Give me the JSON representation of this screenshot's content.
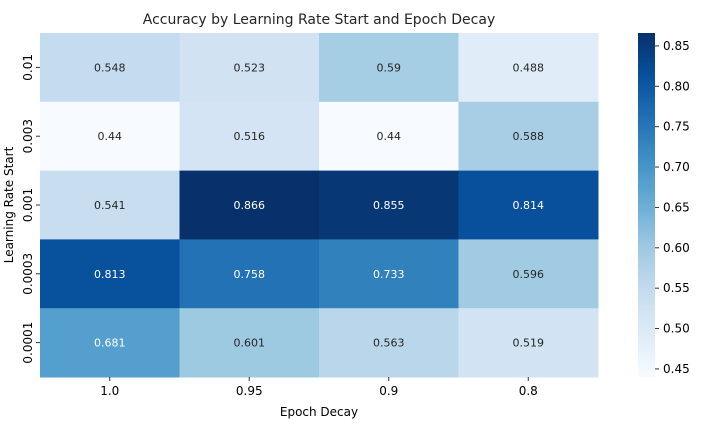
{
  "chart_data": {
    "type": "heatmap",
    "title": "Accuracy by Learning Rate Start and Epoch Decay",
    "xlabel": "Epoch Decay",
    "ylabel": "Learning Rate Start",
    "x_categories": [
      "1.0",
      "0.95",
      "0.9",
      "0.8"
    ],
    "y_categories": [
      "0.01",
      "0.003",
      "0.001",
      "0.0003",
      "0.0001"
    ],
    "values": [
      [
        0.548,
        0.523,
        0.59,
        0.488
      ],
      [
        0.44,
        0.516,
        0.44,
        0.588
      ],
      [
        0.541,
        0.866,
        0.855,
        0.814
      ],
      [
        0.813,
        0.758,
        0.733,
        0.596
      ],
      [
        0.681,
        0.601,
        0.563,
        0.519
      ]
    ],
    "labels": [
      [
        "0.548",
        "0.523",
        "0.59",
        "0.488"
      ],
      [
        "0.44",
        "0.516",
        "0.44",
        "0.588"
      ],
      [
        "0.541",
        "0.866",
        "0.855",
        "0.814"
      ],
      [
        "0.813",
        "0.758",
        "0.733",
        "0.596"
      ],
      [
        "0.681",
        "0.601",
        "0.563",
        "0.519"
      ]
    ],
    "colormap": "Blues",
    "vmin": 0.44,
    "vmax": 0.866,
    "colorbar_ticks": [
      "0.45",
      "0.50",
      "0.55",
      "0.60",
      "0.65",
      "0.70",
      "0.75",
      "0.80",
      "0.85"
    ],
    "colorbar_tick_values": [
      0.45,
      0.5,
      0.55,
      0.6,
      0.65,
      0.7,
      0.75,
      0.8,
      0.85
    ]
  }
}
